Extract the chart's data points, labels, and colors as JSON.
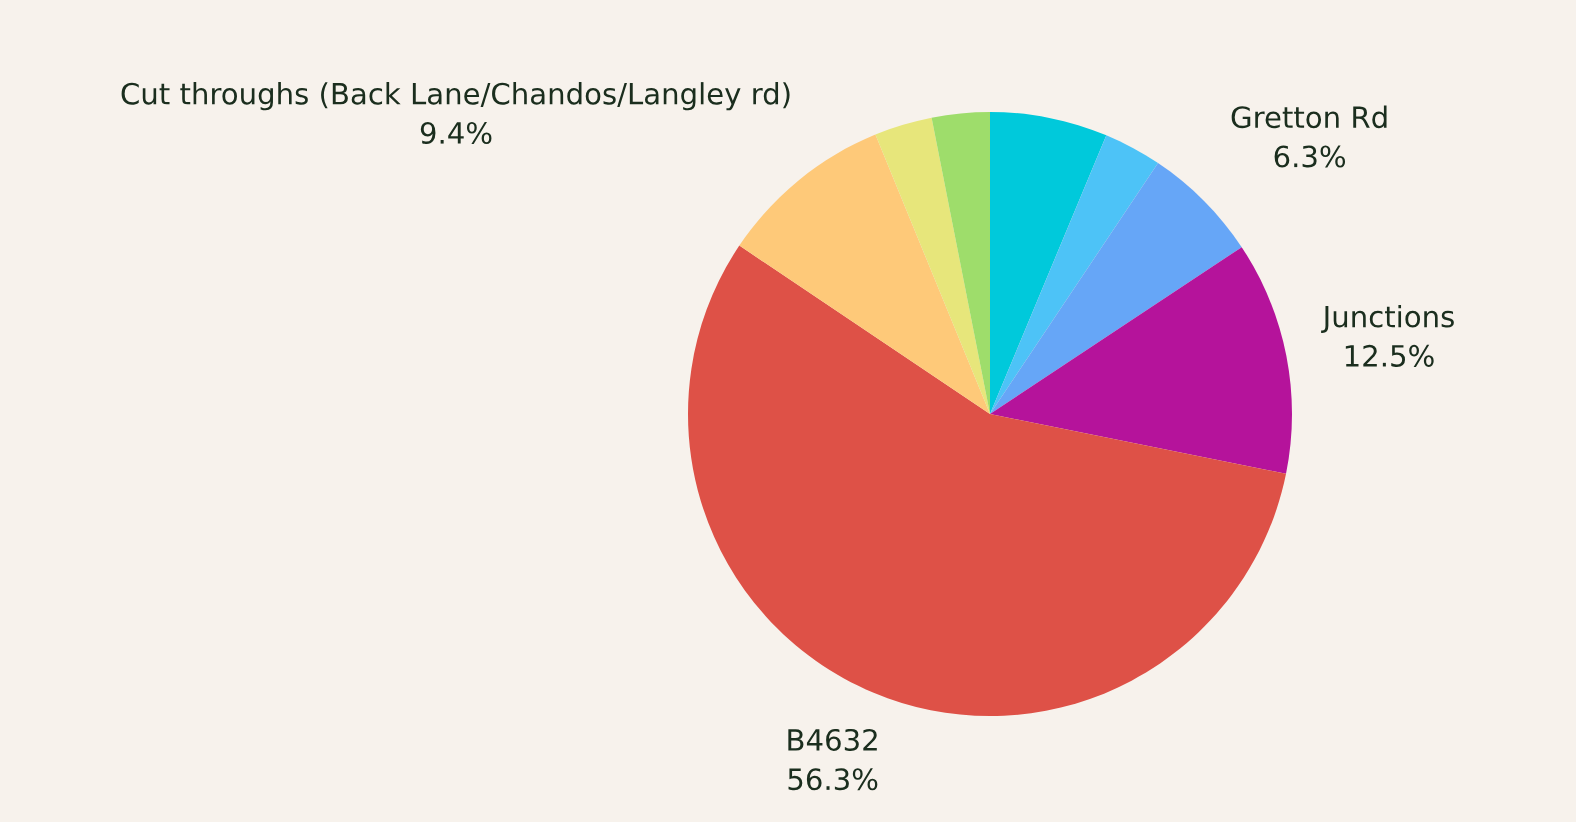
{
  "chart_data": {
    "type": "pie",
    "categories": [
      null,
      null,
      "Gretton Rd",
      "Junctions",
      "B4632",
      "Cut throughs (Back Lane/Chandos/Langley rd)",
      null,
      null
    ],
    "values": [
      6.3,
      3.1,
      6.3,
      12.5,
      56.3,
      9.4,
      3.1,
      3.1
    ],
    "colors": [
      "#00c9db",
      "#4dc3f7",
      "#66a6f7",
      "#b5139b",
      "#de5147",
      "#fec979",
      "#e7e67b",
      "#9edd6b"
    ],
    "value_labels": [
      null,
      null,
      "6.3%",
      "12.5%",
      "56.3%",
      "9.4%",
      null,
      null
    ]
  }
}
